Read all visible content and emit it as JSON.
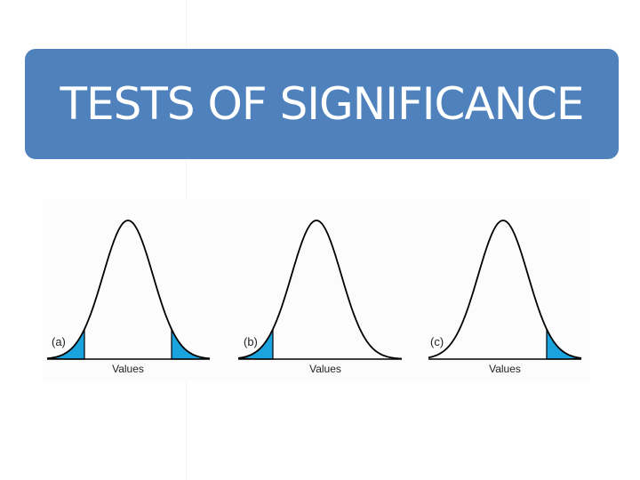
{
  "slide": {
    "title": "TESTS OF SIGNIFICANCE",
    "banner_color": "#4f81bd",
    "tail_color": "#1aa3dc"
  },
  "panels": [
    {
      "tag": "(a)",
      "axis_label": "Values",
      "shaded_tails": [
        "left",
        "right"
      ]
    },
    {
      "tag": "(b)",
      "axis_label": "Values",
      "shaded_tails": [
        "left"
      ]
    },
    {
      "tag": "(c)",
      "axis_label": "Values",
      "shaded_tails": [
        "right"
      ]
    }
  ]
}
